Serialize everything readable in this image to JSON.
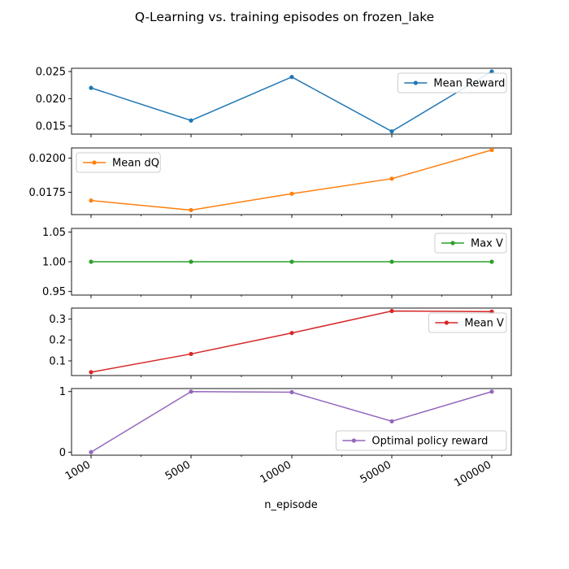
{
  "chart_data": {
    "type": "line",
    "title": "Q-Learning vs. training episodes on frozen_lake",
    "xlabel": "n_episode",
    "categories": [
      "1000",
      "5000",
      "10000",
      "50000",
      "100000"
    ],
    "grid": false,
    "panels": [
      {
        "series": [
          {
            "name": "Mean Reward",
            "color": "#1f77b4",
            "values": [
              0.022,
              0.016,
              0.024,
              0.014,
              0.025
            ]
          }
        ],
        "ylim": [
          0.0135,
          0.0256
        ],
        "yticks": [
          0.015,
          0.02,
          0.025
        ],
        "ytick_labels": [
          "0.015",
          "0.020",
          "0.025"
        ],
        "legend": "top-right"
      },
      {
        "series": [
          {
            "name": "Mean dQ",
            "color": "#ff7f0e",
            "values": [
              0.0169,
              0.0162,
              0.0174,
              0.0185,
              0.0206
            ]
          }
        ],
        "ylim": [
          0.01587,
          0.02075
        ],
        "yticks": [
          0.0175,
          0.02
        ],
        "ytick_labels": [
          "0.0175",
          "0.0200"
        ],
        "legend": "top-left"
      },
      {
        "series": [
          {
            "name": "Max V",
            "color": "#2ca02c",
            "values": [
              1.0,
              1.0,
              1.0,
              1.0,
              1.0
            ]
          }
        ],
        "ylim": [
          0.944,
          1.056
        ],
        "yticks": [
          0.95,
          1.0,
          1.05
        ],
        "ytick_labels": [
          "0.95",
          "1.00",
          "1.05"
        ],
        "legend": "top-right"
      },
      {
        "series": [
          {
            "name": "Mean V",
            "color": "#d62728",
            "values": [
              0.046,
              0.133,
              0.233,
              0.338,
              0.335
            ]
          }
        ],
        "ylim": [
          0.03,
          0.352
        ],
        "yticks": [
          0.1,
          0.2,
          0.3
        ],
        "ytick_labels": [
          "0.1",
          "0.2",
          "0.3"
        ],
        "legend": "top-right"
      },
      {
        "series": [
          {
            "name": "Optimal policy reward",
            "color": "#9467bd",
            "values": [
              0.0,
              1.0,
              0.99,
              0.51,
              1.0
            ]
          }
        ],
        "ylim": [
          -0.05,
          1.05
        ],
        "yticks": [
          0,
          1
        ],
        "ytick_labels": [
          "0",
          "1"
        ],
        "legend": "bottom-right"
      }
    ]
  }
}
